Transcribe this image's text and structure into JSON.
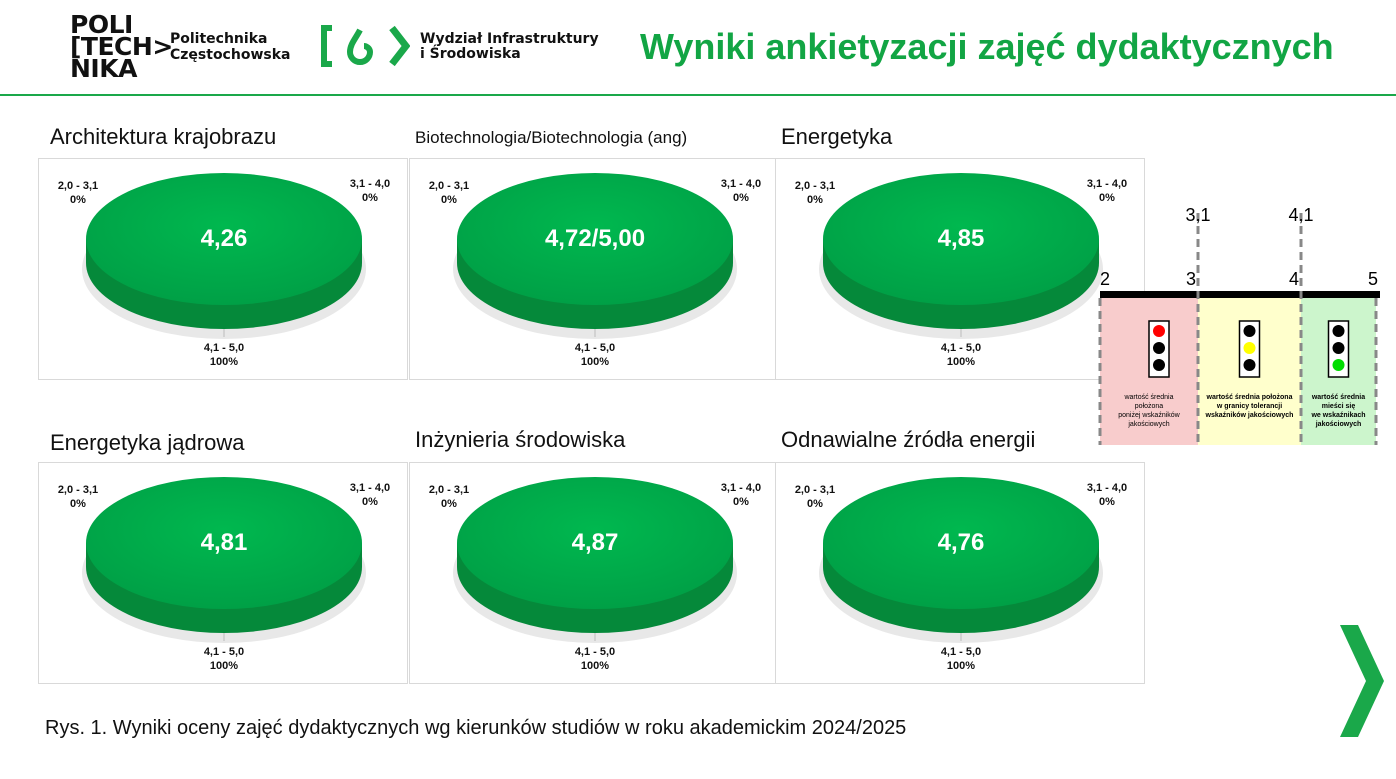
{
  "header": {
    "logo1_lines": [
      "POLI",
      "[TECH>",
      "NIKA"
    ],
    "logo1_name": [
      "Politechnika",
      "Częstochowska"
    ],
    "logo2_name": [
      "Wydział Infrastruktury",
      "i Środowiska"
    ],
    "title": "Wyniki ankietyzacji zajęć dydaktycznych"
  },
  "colors": {
    "accent": "#12a544",
    "pie": "#00b050",
    "red": "#f8cccc",
    "yellow": "#ffffcc",
    "green": "#ccf5cc"
  },
  "chart_data": [
    {
      "type": "pie",
      "title": "Architektura krajobrazu",
      "center_label": "4,26",
      "slices": [
        {
          "label": "2,0 - 3,1",
          "value": 0,
          "pct": "0%"
        },
        {
          "label": "3,1 - 4,0",
          "value": 0,
          "pct": "0%"
        },
        {
          "label": "4,1 - 5,0",
          "value": 100,
          "pct": "100%"
        }
      ]
    },
    {
      "type": "pie",
      "title": "Biotechnologia/Biotechnologia (ang)",
      "center_label": "4,72/5,00",
      "slices": [
        {
          "label": "2,0 - 3,1",
          "value": 0,
          "pct": "0%"
        },
        {
          "label": "3,1 - 4,0",
          "value": 0,
          "pct": "0%"
        },
        {
          "label": "4,1 - 5,0",
          "value": 100,
          "pct": "100%"
        }
      ]
    },
    {
      "type": "pie",
      "title": "Energetyka",
      "center_label": "4,85",
      "slices": [
        {
          "label": "2,0 - 3,1",
          "value": 0,
          "pct": "0%"
        },
        {
          "label": "3,1 - 4,0",
          "value": 0,
          "pct": "0%"
        },
        {
          "label": "4,1 - 5,0",
          "value": 100,
          "pct": "100%"
        }
      ]
    },
    {
      "type": "pie",
      "title": "Energetyka jądrowa",
      "center_label": "4,81",
      "slices": [
        {
          "label": "2,0 - 3,1",
          "value": 0,
          "pct": "0%"
        },
        {
          "label": "3,1 - 4,0",
          "value": 0,
          "pct": "0%"
        },
        {
          "label": "4,1 - 5,0",
          "value": 100,
          "pct": "100%"
        }
      ]
    },
    {
      "type": "pie",
      "title": "Inżynieria środowiska",
      "center_label": "4,87",
      "slices": [
        {
          "label": "2,0 - 3,1",
          "value": 0,
          "pct": "0%"
        },
        {
          "label": "3,1 - 4,0",
          "value": 0,
          "pct": "0%"
        },
        {
          "label": "4,1 - 5,0",
          "value": 100,
          "pct": "100%"
        }
      ]
    },
    {
      "type": "pie",
      "title": "Odnawialne źródła energii",
      "center_label": "4,76",
      "slices": [
        {
          "label": "2,0 - 3,1",
          "value": 0,
          "pct": "0%"
        },
        {
          "label": "3,1 - 4,0",
          "value": 0,
          "pct": "0%"
        },
        {
          "label": "4,1 - 5,0",
          "value": 100,
          "pct": "100%"
        }
      ]
    }
  ],
  "legend": {
    "scale": [
      "2",
      "3",
      "4",
      "5"
    ],
    "thresholds": [
      "3,1",
      "4,1"
    ],
    "zones": [
      {
        "text": [
          "wartość średnia",
          "położona",
          "poniżej wskaźników",
          "jakościowych"
        ],
        "light": "red"
      },
      {
        "text": [
          "wartość średnia położona",
          "w granicy tolerancji",
          "wskaźników jakościowych"
        ],
        "light": "yellow"
      },
      {
        "text": [
          "wartość średnia",
          "mieści się",
          "we wskaźnikach",
          "jakościowych"
        ],
        "light": "green"
      }
    ]
  },
  "caption": "Rys. 1. Wyniki oceny zajęć dydaktycznych wg kierunków studiów  w roku akademickim 2024/2025"
}
